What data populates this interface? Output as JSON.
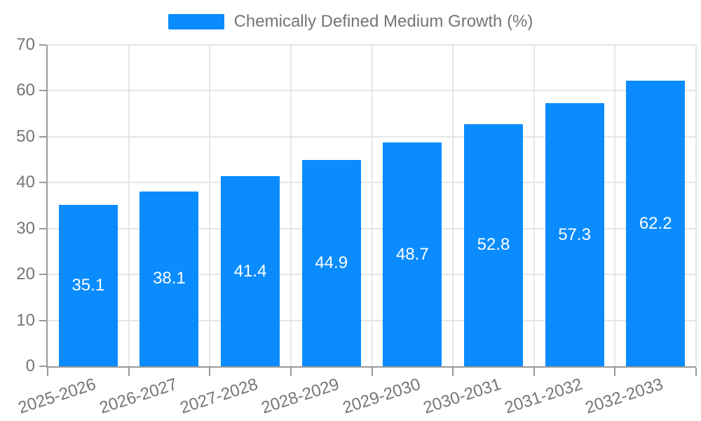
{
  "chart_data": {
    "type": "bar",
    "title": "",
    "legend": [
      "Chemically Defined Medium Growth (%)"
    ],
    "legend_position": "top-center",
    "categories": [
      "2025-2026",
      "2026-2027",
      "2027-2028",
      "2028-2029",
      "2029-2030",
      "2030-2031",
      "2031-2032",
      "2032-2033"
    ],
    "values": [
      35.1,
      38.1,
      41.4,
      44.9,
      48.7,
      52.8,
      57.3,
      62.2
    ],
    "value_labels": [
      "35.1",
      "38.1",
      "41.4",
      "44.9",
      "48.7",
      "52.8",
      "57.3",
      "62.2"
    ],
    "xlabel": "",
    "ylabel": "",
    "ylim": [
      0,
      70
    ],
    "ytick_step": 10,
    "ytick_labels": [
      "0",
      "10",
      "20",
      "30",
      "40",
      "50",
      "60",
      "70"
    ],
    "grid": true,
    "x_label_rotation_deg": -18,
    "colors": {
      "bar": "#0a8cff",
      "value_label": "#ffffff",
      "axis_label": "#757575",
      "legend_text": "#757575",
      "grid_line": "#e6e6e6",
      "axis_line": "#9a9a9a"
    }
  }
}
